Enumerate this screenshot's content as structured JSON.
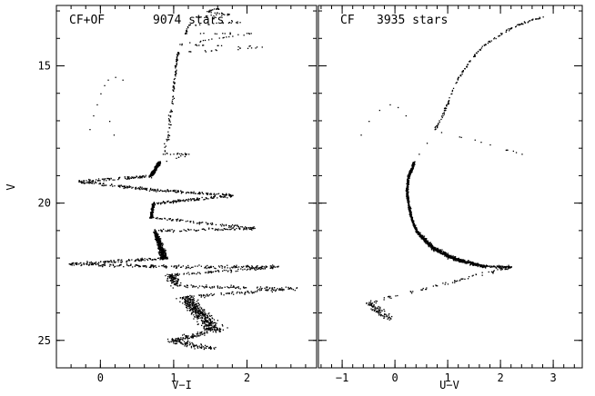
{
  "chart_data": [
    {
      "type": "scatter",
      "panel_label": "CF+OF",
      "star_count_label": "9074 stars",
      "xlabel": "V−I",
      "ylabel": "V",
      "xlim": [
        -0.6,
        2.95
      ],
      "ylim": [
        26.0,
        12.8
      ],
      "y_inverted": true,
      "x_ticks": [
        0,
        1,
        2
      ],
      "x_tick_labels": [
        "0",
        "1",
        "2"
      ],
      "y_ticks": [
        15,
        20,
        25
      ],
      "y_tick_labels": [
        "15",
        "20",
        "25"
      ],
      "grid": false,
      "legend": "none",
      "point_color": "#000000",
      "series": [
        {
          "x": [
            0.75,
            0.8,
            0.85,
            0.92,
            0.95,
            0.98,
            1.0,
            1.02,
            1.03,
            1.05,
            1.08,
            1.15,
            1.2,
            1.3,
            1.45,
            1.6,
            1.75,
            1.9,
            2.05,
            2.2,
            0.68,
            0.7,
            0.72,
            0.68,
            0.74,
            0.78,
            0.82,
            0.84,
            0.86,
            0.9,
            0.95,
            1.05,
            1.15,
            1.25,
            1.35,
            1.45,
            1.55,
            -0.15,
            -0.1,
            -0.05,
            0.0,
            0.05,
            0.1,
            0.2,
            0.3,
            0.12,
            0.18,
            1.2,
            1.8,
            2.1,
            2.4,
            2.6,
            -0.3,
            -0.4,
            1.5,
            1.0
          ],
          "y": [
            18.7,
            18.5,
            18.2,
            17.5,
            16.8,
            16.2,
            15.6,
            15.2,
            14.8,
            14.5,
            14.2,
            13.8,
            13.5,
            13.2,
            13.0,
            12.9,
            13.1,
            13.4,
            13.8,
            14.3,
            19.0,
            19.5,
            20.0,
            20.5,
            21.0,
            21.3,
            21.6,
            21.8,
            22.0,
            22.3,
            22.6,
            23.0,
            23.4,
            23.7,
            24.0,
            24.3,
            24.6,
            17.3,
            16.8,
            16.4,
            16.0,
            15.7,
            15.5,
            15.4,
            15.5,
            17.0,
            17.5,
            18.2,
            19.7,
            20.9,
            22.3,
            23.1,
            19.2,
            22.2,
            25.3,
            25.0
          ],
          "description": "Main sequence from V≈18.7 to V≈25, red giant branch up to V≈13, horizontal branch near V≈15.5–17.5"
        }
      ]
    },
    {
      "type": "scatter",
      "panel_label": "CF",
      "star_count_label": "3935 stars",
      "xlabel": "U−V",
      "ylabel": "",
      "xlim": [
        -1.45,
        3.55
      ],
      "ylim": [
        26.0,
        12.8
      ],
      "y_inverted": true,
      "x_ticks": [
        -1,
        0,
        1,
        2,
        3
      ],
      "x_tick_labels": [
        "−1",
        "0",
        "1",
        "2",
        "3"
      ],
      "y_ticks": [
        15,
        20,
        25
      ],
      "grid": false,
      "legend": "none",
      "point_color": "#000000",
      "series": [
        {
          "x": [
            0.3,
            0.35,
            0.45,
            0.6,
            0.75,
            0.9,
            1.0,
            1.1,
            1.2,
            1.35,
            1.5,
            1.7,
            1.95,
            2.2,
            2.45,
            2.8,
            0.25,
            0.22,
            0.25,
            0.3,
            0.4,
            0.55,
            0.7,
            0.9,
            1.1,
            1.3,
            1.5,
            1.7,
            -0.65,
            -0.5,
            -0.3,
            -0.1,
            0.05,
            0.2,
            2.4,
            -0.5,
            -0.15,
            2.2
          ],
          "y": [
            18.8,
            18.5,
            18.2,
            17.8,
            17.3,
            16.8,
            16.3,
            15.8,
            15.4,
            15.0,
            14.6,
            14.2,
            13.9,
            13.6,
            13.4,
            13.2,
            19.0,
            19.5,
            20.0,
            20.5,
            21.0,
            21.3,
            21.6,
            21.8,
            22.0,
            22.1,
            22.2,
            22.3,
            17.5,
            17.0,
            16.6,
            16.4,
            16.5,
            16.8,
            18.2,
            23.6,
            24.2,
            22.3
          ],
          "description": "Main sequence V≈19–22.5 curving to redder U−V, red giant branch to V≈13, horizontal branch V≈16.4–17.5"
        }
      ]
    }
  ]
}
